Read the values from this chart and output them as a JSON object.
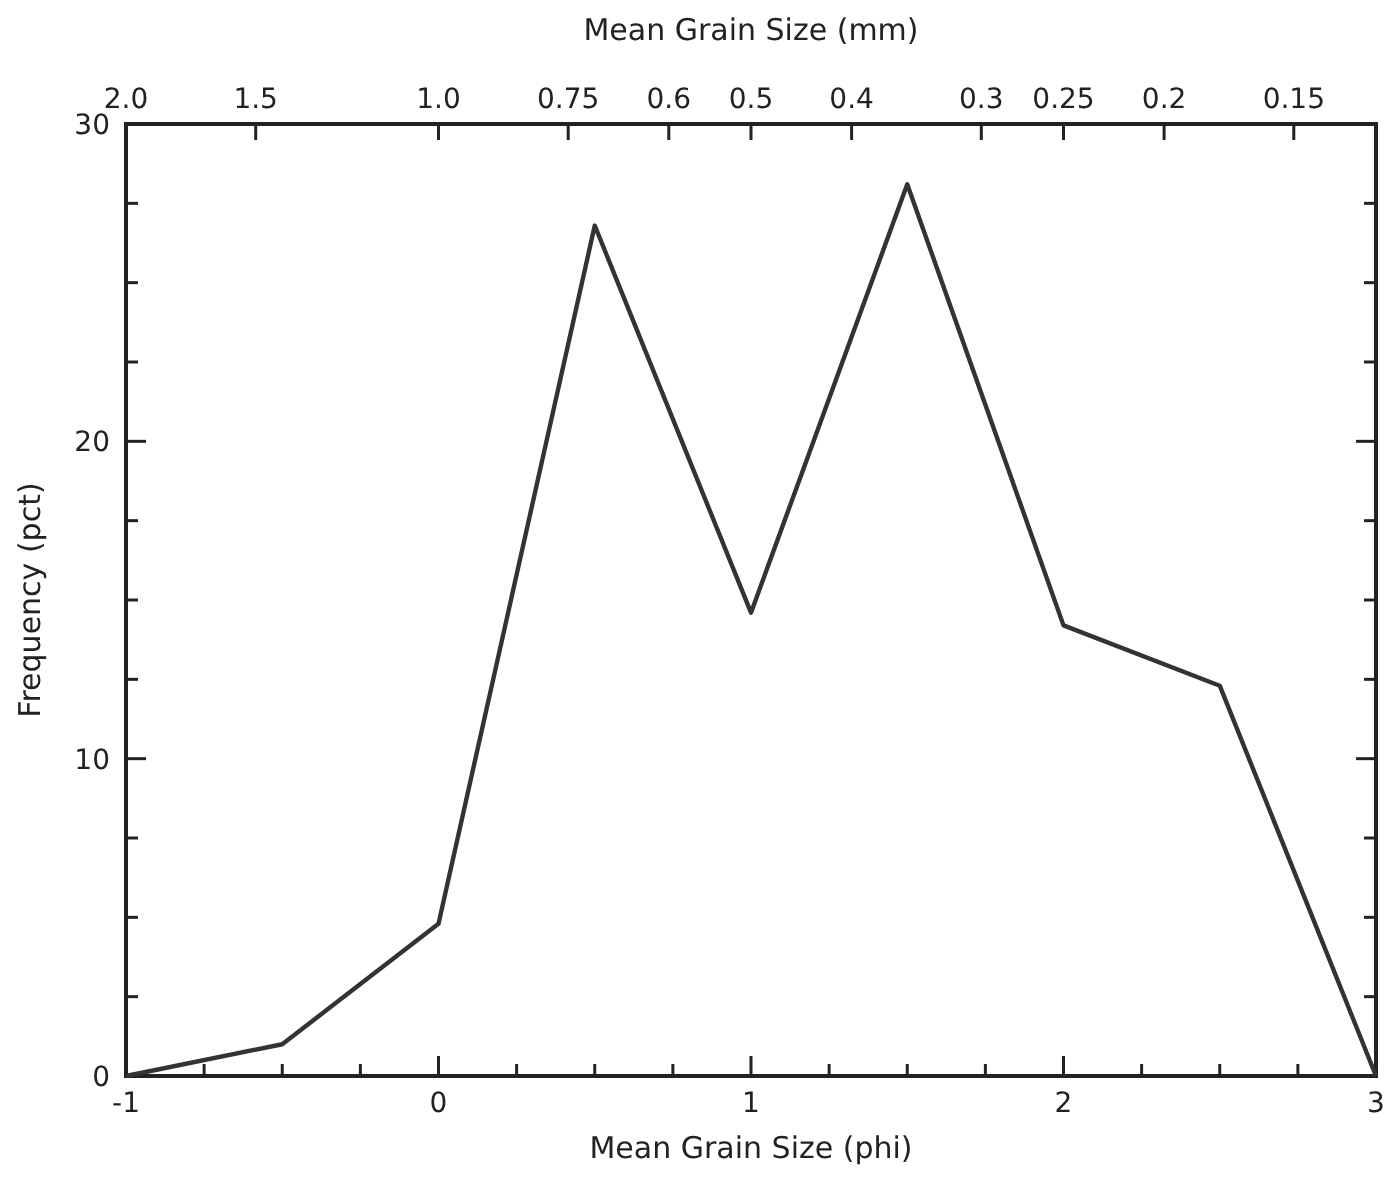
{
  "chart_data": {
    "type": "line",
    "xlabel": "Mean Grain Size (phi)",
    "ylabel": "Frequency (pct)",
    "x2label": "Mean Grain Size (mm)",
    "x": [
      -1,
      -0.5,
      0,
      0.5,
      1,
      1.5,
      2,
      2.5,
      3
    ],
    "series": [
      {
        "color": "#333333",
        "values": [
          0,
          1.0,
          4.8,
          26.8,
          14.6,
          28.1,
          14.2,
          12.3,
          0
        ]
      }
    ],
    "xlim": [
      -1,
      3
    ],
    "xticks": [
      -1,
      {
        "value": -0.75,
        "label": null
      },
      {
        "value": -0.5,
        "label": null
      },
      {
        "value": -0.25,
        "label": null
      },
      0,
      {
        "value": 0.25,
        "label": null
      },
      {
        "value": 0.5,
        "label": null
      },
      {
        "value": 0.75,
        "label": null
      },
      1,
      {
        "value": 1.25,
        "label": null
      },
      {
        "value": 1.5,
        "label": null
      },
      {
        "value": 1.75,
        "label": null
      },
      2,
      {
        "value": 2.25,
        "label": null
      },
      {
        "value": 2.5,
        "label": null
      },
      {
        "value": 2.75,
        "label": null
      },
      3
    ],
    "ylim": [
      0,
      30
    ],
    "yticks": [
      0,
      {
        "value": 2.5,
        "label": null
      },
      {
        "value": 5,
        "label": null
      },
      {
        "value": 7.5,
        "label": null
      },
      10,
      {
        "value": 12.5,
        "label": null
      },
      {
        "value": 15,
        "label": null
      },
      {
        "value": 17.5,
        "label": null
      },
      20,
      {
        "value": 22.5,
        "label": null
      },
      {
        "value": 25,
        "label": null
      },
      {
        "value": 27.5,
        "label": null
      },
      30
    ],
    "x2lim": [
      2,
      0.125
    ],
    "x2ticks": [
      {
        "value": 2,
        "label": "2.0"
      },
      1.5,
      {
        "value": 1,
        "label": "1.0"
      },
      0.75,
      0.6,
      0.5,
      0.4,
      0.3,
      0.25,
      0.2,
      0.15
    ],
    "log": "x2",
    "grid": false,
    "marker": "none",
    "line_style": "solid"
  }
}
